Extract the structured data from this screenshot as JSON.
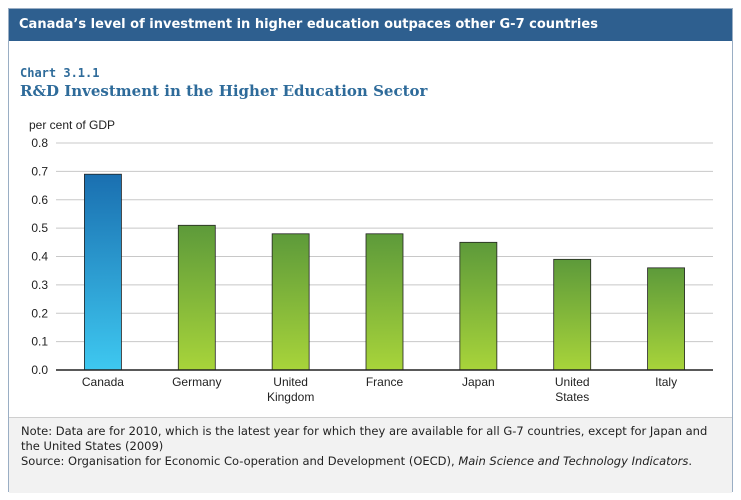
{
  "banner": "Canada’s level of investment in higher education outpaces other G-7 countries",
  "chart_number": "Chart 3.1.1",
  "chart_title": "R&D Investment in the Higher Education Sector",
  "colors": {
    "banner": "#2e5f8f",
    "title": "#2e6b9a",
    "canada_top": "#1a6fb0",
    "canada_bottom": "#3ec8f0",
    "other_top": "#5d9a3a",
    "other_bottom": "#a8d43a"
  },
  "chart_data": {
    "type": "bar",
    "ylabel": "per cent of GDP",
    "ylim": [
      0,
      0.8
    ],
    "yticks": [
      "0.0",
      "0.1",
      "0.2",
      "0.3",
      "0.4",
      "0.5",
      "0.6",
      "0.7",
      "0.8"
    ],
    "categories": [
      [
        "Canada"
      ],
      [
        "Germany"
      ],
      [
        "United",
        "Kingdom"
      ],
      [
        "France"
      ],
      [
        "Japan"
      ],
      [
        "United",
        "States"
      ],
      [
        "Italy"
      ]
    ],
    "values": [
      0.69,
      0.51,
      0.48,
      0.48,
      0.45,
      0.39,
      0.36
    ],
    "grid": true
  },
  "notes": {
    "note": "Note: Data are for 2010, which is the latest year for which they are available for all G-7 countries, except for Japan and the United States (2009)",
    "source_prefix": "Source: Organisation for Economic Co-operation and Development (OECD), ",
    "source_title": "Main Science and Technology Indicators",
    "source_suffix": "."
  }
}
